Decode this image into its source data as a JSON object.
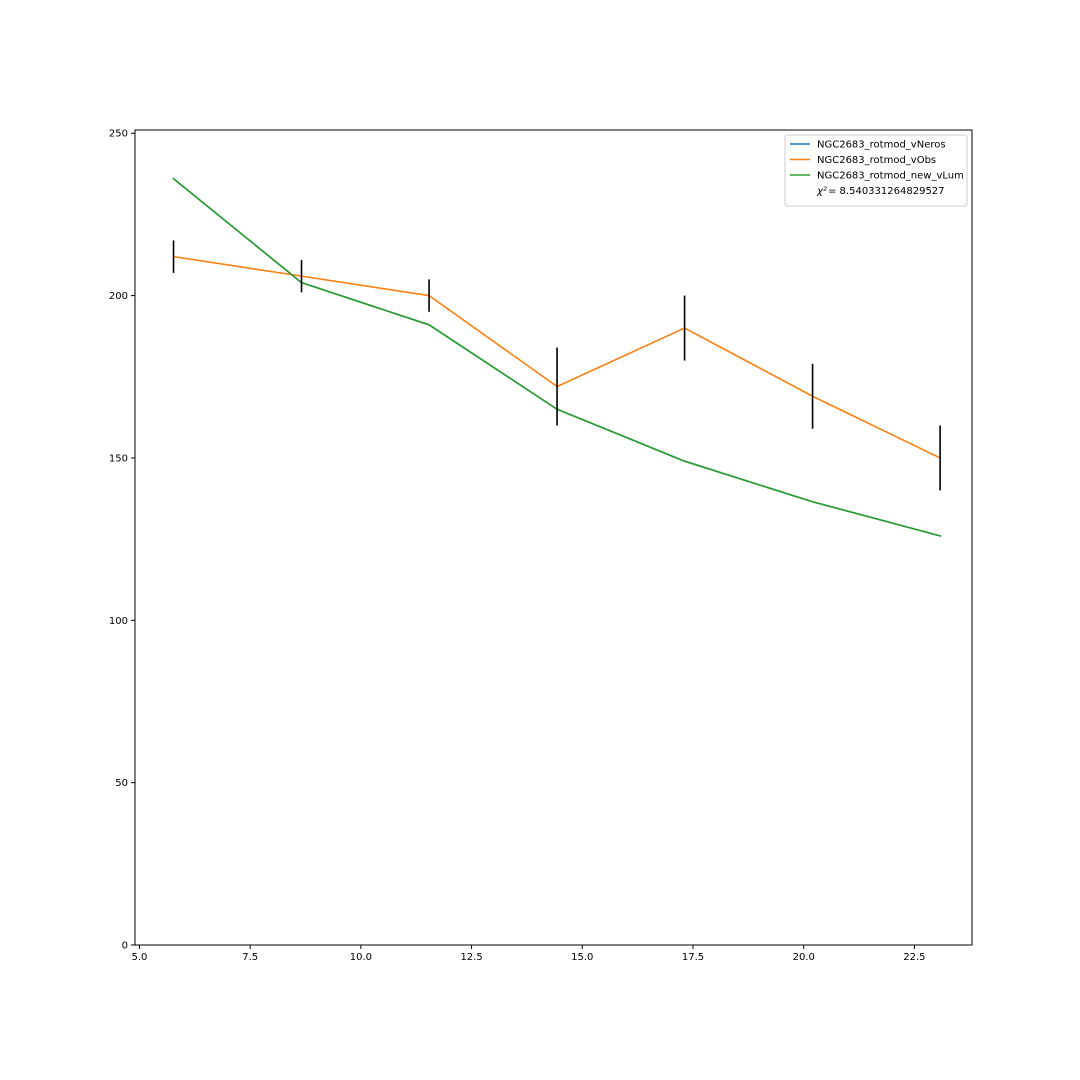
{
  "chart_data": {
    "type": "line",
    "title": "",
    "xlabel": "",
    "ylabel": "",
    "xlim": [
      4.9,
      23.8
    ],
    "ylim": [
      0,
      251
    ],
    "x_ticks": [
      5.0,
      7.5,
      10.0,
      12.5,
      15.0,
      17.5,
      20.0,
      22.5
    ],
    "x_tick_labels": [
      "5.0",
      "7.5",
      "10.0",
      "12.5",
      "15.0",
      "17.5",
      "20.0",
      "22.5"
    ],
    "y_ticks": [
      0,
      50,
      100,
      150,
      200,
      250
    ],
    "y_tick_labels": [
      "0",
      "50",
      "100",
      "150",
      "200",
      "250"
    ],
    "grid": false,
    "legend_position": "top-right",
    "x": [
      5.77,
      8.66,
      11.54,
      14.43,
      17.31,
      20.2,
      23.08
    ],
    "series": [
      {
        "name": "NGC2683_rotmod_vNeros",
        "color": "#1f77b4",
        "values": [
          236,
          204,
          191,
          165,
          149,
          136.5,
          126
        ]
      },
      {
        "name": "NGC2683_rotmod_vObs",
        "color": "#ff7f0e",
        "values": [
          212,
          206,
          200,
          172,
          190,
          169,
          150
        ]
      },
      {
        "name": "NGC2683_rotmod_new_vLum",
        "color": "#2ca02c",
        "values": [
          236,
          204,
          191,
          165,
          149,
          136.5,
          126
        ]
      }
    ],
    "error_bars": {
      "series": "NGC2683_rotmod_vObs",
      "color": "#000000",
      "errors": [
        5,
        5,
        5,
        12,
        10,
        10,
        10
      ]
    },
    "legend_extra": {
      "label": "χ²",
      "text": " = 8.540331264829527"
    }
  }
}
